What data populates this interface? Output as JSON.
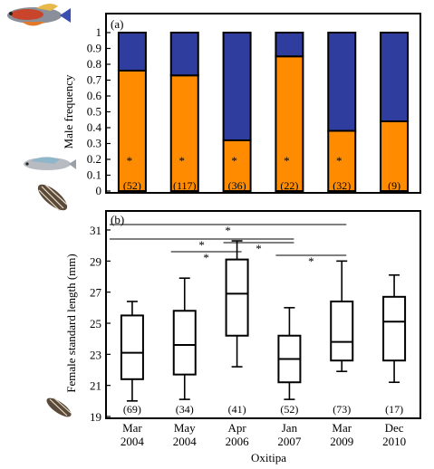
{
  "chart_data": [
    {
      "type": "bar",
      "panel_label": "(a)",
      "ylabel": "Male frequency",
      "ylim": [
        0,
        1
      ],
      "yticks": [
        "0",
        "0.1",
        "0.2",
        "0.3",
        "0.4",
        "0.5",
        "0.6",
        "0.7",
        "0.8",
        "0.9",
        "1"
      ],
      "stacked": true,
      "series": [
        {
          "color": "#FF8C00",
          "values": [
            0.76,
            0.73,
            0.32,
            0.85,
            0.38,
            0.44
          ]
        },
        {
          "color": "#2F3E9E",
          "values": [
            0.24,
            0.27,
            0.68,
            0.15,
            0.62,
            0.56
          ]
        }
      ],
      "sample_sizes": [
        "(52)",
        "(117)",
        "(36)",
        "(22)",
        "(32)",
        "(9)"
      ],
      "significance_marks": [
        "*",
        "*",
        "*",
        "*",
        "*",
        ""
      ]
    },
    {
      "type": "boxplot",
      "panel_label": "(b)",
      "ylabel": "Female standard length (mm)",
      "ylim": [
        19,
        31
      ],
      "yticks": [
        "19",
        "21",
        "23",
        "25",
        "27",
        "29",
        "31"
      ],
      "xlabel": "Oxitipa",
      "categories": [
        {
          "line1": "Mar",
          "line2": "2004"
        },
        {
          "line1": "May",
          "line2": "2004"
        },
        {
          "line1": "Apr",
          "line2": "2006"
        },
        {
          "line1": "Jan",
          "line2": "2007"
        },
        {
          "line1": "Mar",
          "line2": "2009"
        },
        {
          "line1": "Dec",
          "line2": "2010"
        }
      ],
      "boxes": [
        {
          "min": 20.0,
          "q1": 21.4,
          "median": 23.1,
          "q3": 25.5,
          "max": 26.4
        },
        {
          "min": 20.1,
          "q1": 21.7,
          "median": 23.6,
          "q3": 25.8,
          "max": 27.9
        },
        {
          "min": 22.2,
          "q1": 24.2,
          "median": 26.9,
          "q3": 29.1,
          "max": 30.3
        },
        {
          "min": 20.1,
          "q1": 21.2,
          "median": 22.7,
          "q3": 24.2,
          "max": 26.0
        },
        {
          "min": 21.9,
          "q1": 22.6,
          "median": 23.8,
          "q3": 26.4,
          "max": 29.0
        },
        {
          "min": 21.2,
          "q1": 22.6,
          "median": 25.1,
          "q3": 26.7,
          "max": 28.1
        }
      ],
      "sample_sizes": [
        "(69)",
        "(34)",
        "(41)",
        "(52)",
        "(73)",
        "(17)"
      ],
      "comparisons": [
        {
          "from": 0,
          "to": 4,
          "mark": "*"
        },
        {
          "from": 0,
          "to": 3,
          "mark": "*"
        },
        {
          "from": 1,
          "to": 2,
          "mark": "*"
        },
        {
          "from": 2,
          "to": 3,
          "mark": "*"
        },
        {
          "from": 3,
          "to": 4,
          "mark": "*"
        }
      ]
    }
  ]
}
